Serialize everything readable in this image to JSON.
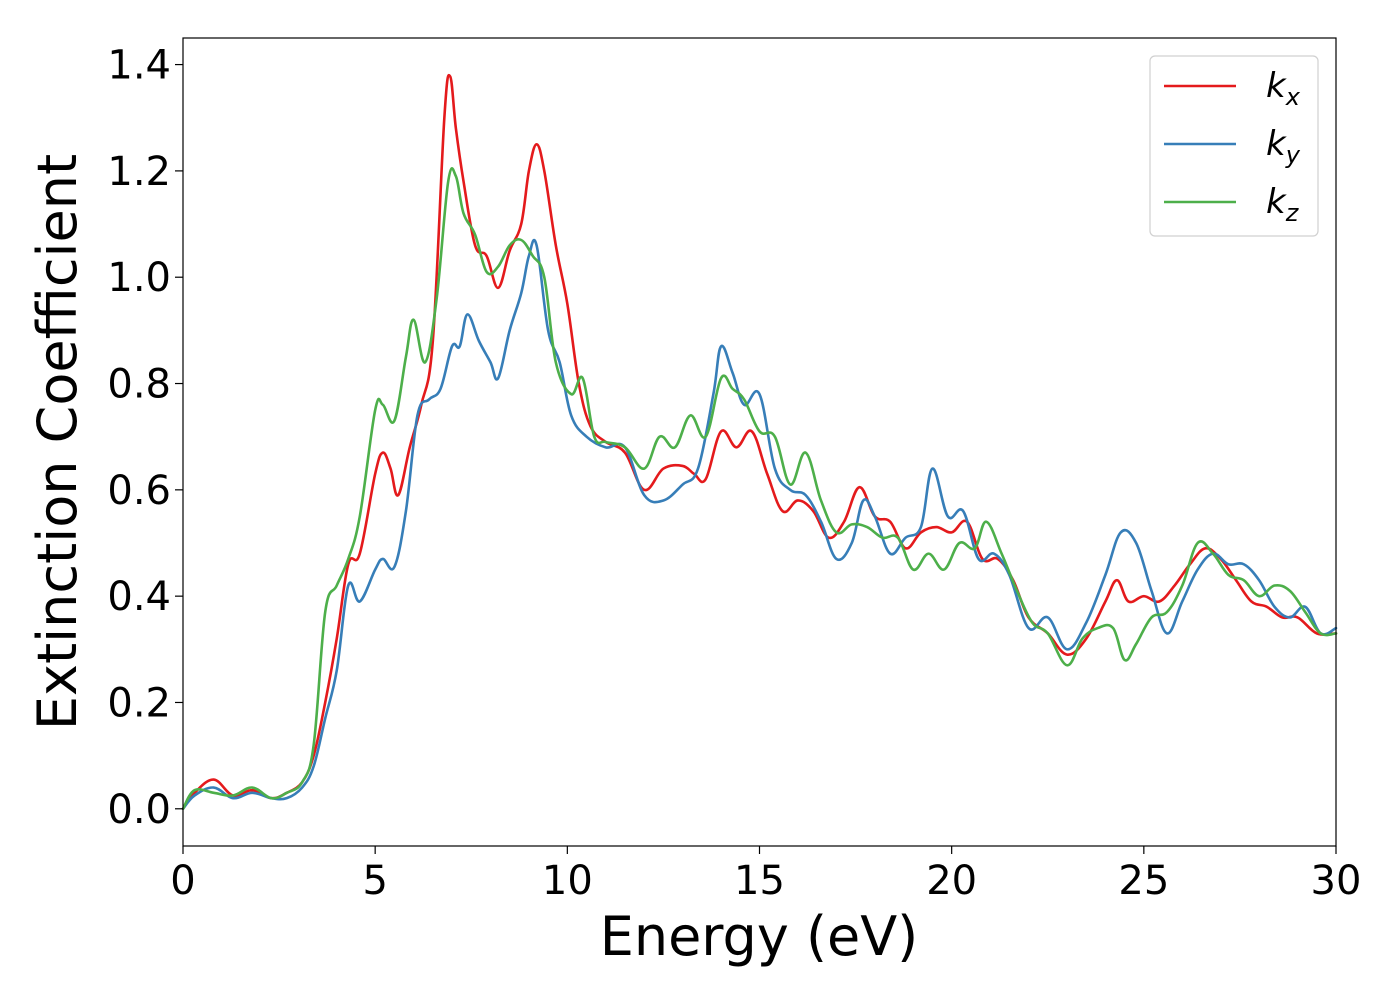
{
  "chart_data": {
    "type": "line",
    "title": "",
    "xlabel": "Energy (eV)",
    "ylabel": "Extinction Coefficient",
    "xlim": [
      0,
      30
    ],
    "ylim": [
      -0.07,
      1.45
    ],
    "xticks": [
      0,
      5,
      10,
      15,
      20,
      25,
      30
    ],
    "xtick_labels": [
      "0",
      "5",
      "10",
      "15",
      "20",
      "25",
      "30"
    ],
    "yticks": [
      0.0,
      0.2,
      0.4,
      0.6,
      0.8,
      1.0,
      1.2,
      1.4
    ],
    "ytick_labels": [
      "0.0",
      "0.2",
      "0.4",
      "0.6",
      "0.8",
      "1.0",
      "1.2",
      "1.4"
    ],
    "grid": false,
    "legend_position": "top-right",
    "series": [
      {
        "name": "k_x",
        "label_main": "k",
        "label_sub": "x",
        "color": "#e41a1c",
        "x": [
          0,
          0.3,
          0.8,
          1.3,
          1.8,
          2.3,
          2.7,
          3.1,
          3.4,
          3.7,
          4.0,
          4.3,
          4.6,
          5.0,
          5.2,
          5.4,
          5.6,
          5.9,
          6.2,
          6.5,
          6.8,
          6.95,
          7.1,
          7.3,
          7.6,
          7.9,
          8.2,
          8.5,
          8.8,
          9.0,
          9.2,
          9.4,
          9.7,
          10.0,
          10.3,
          10.6,
          11.0,
          11.5,
          12.0,
          12.5,
          13.0,
          13.3,
          13.6,
          14.0,
          14.4,
          14.8,
          15.2,
          15.6,
          16.0,
          16.4,
          16.8,
          17.2,
          17.6,
          18.0,
          18.4,
          18.8,
          19.2,
          19.6,
          20.0,
          20.4,
          20.8,
          21.2,
          21.6,
          22.0,
          22.5,
          23.0,
          23.5,
          24.0,
          24.3,
          24.6,
          25.0,
          25.4,
          25.8,
          26.2,
          26.6,
          27.0,
          27.4,
          27.8,
          28.2,
          28.6,
          29.0,
          29.5,
          30.0
        ],
        "y": [
          0.0,
          0.03,
          0.055,
          0.025,
          0.035,
          0.02,
          0.03,
          0.05,
          0.1,
          0.2,
          0.32,
          0.46,
          0.48,
          0.63,
          0.67,
          0.64,
          0.59,
          0.68,
          0.76,
          0.88,
          1.3,
          1.378,
          1.28,
          1.18,
          1.06,
          1.04,
          0.98,
          1.05,
          1.1,
          1.2,
          1.25,
          1.2,
          1.06,
          0.95,
          0.8,
          0.72,
          0.69,
          0.67,
          0.6,
          0.64,
          0.645,
          0.63,
          0.62,
          0.71,
          0.68,
          0.71,
          0.63,
          0.56,
          0.58,
          0.56,
          0.51,
          0.54,
          0.605,
          0.55,
          0.54,
          0.49,
          0.52,
          0.53,
          0.52,
          0.54,
          0.47,
          0.47,
          0.43,
          0.36,
          0.33,
          0.29,
          0.32,
          0.39,
          0.43,
          0.39,
          0.4,
          0.39,
          0.42,
          0.46,
          0.49,
          0.47,
          0.43,
          0.39,
          0.38,
          0.36,
          0.36,
          0.33,
          0.33
        ]
      },
      {
        "name": "k_y",
        "label_main": "k",
        "label_sub": "y",
        "color": "#377eb8",
        "x": [
          0,
          0.3,
          0.8,
          1.3,
          1.8,
          2.3,
          2.7,
          3.1,
          3.4,
          3.7,
          4.0,
          4.3,
          4.6,
          5.0,
          5.2,
          5.5,
          5.8,
          6.1,
          6.4,
          6.7,
          7.0,
          7.2,
          7.4,
          7.7,
          8.0,
          8.2,
          8.5,
          8.8,
          9.0,
          9.2,
          9.5,
          9.8,
          10.1,
          10.5,
          11.0,
          11.5,
          12.0,
          12.5,
          13.0,
          13.4,
          13.8,
          14.0,
          14.3,
          14.6,
          15.0,
          15.4,
          15.8,
          16.2,
          16.6,
          17.0,
          17.4,
          17.7,
          18.0,
          18.4,
          18.8,
          19.2,
          19.5,
          19.9,
          20.3,
          20.7,
          21.1,
          21.5,
          22.0,
          22.5,
          23.0,
          23.5,
          24.0,
          24.4,
          24.8,
          25.2,
          25.6,
          26.0,
          26.4,
          26.8,
          27.2,
          27.6,
          28.0,
          28.4,
          28.8,
          29.2,
          29.6,
          30.0
        ],
        "y": [
          0.0,
          0.025,
          0.04,
          0.02,
          0.03,
          0.02,
          0.02,
          0.04,
          0.08,
          0.17,
          0.26,
          0.42,
          0.39,
          0.45,
          0.47,
          0.455,
          0.56,
          0.74,
          0.77,
          0.79,
          0.87,
          0.87,
          0.93,
          0.88,
          0.84,
          0.81,
          0.9,
          0.97,
          1.04,
          1.06,
          0.9,
          0.84,
          0.74,
          0.7,
          0.68,
          0.68,
          0.59,
          0.58,
          0.61,
          0.64,
          0.78,
          0.87,
          0.82,
          0.76,
          0.78,
          0.64,
          0.6,
          0.59,
          0.54,
          0.47,
          0.5,
          0.58,
          0.55,
          0.48,
          0.51,
          0.53,
          0.64,
          0.55,
          0.56,
          0.47,
          0.48,
          0.44,
          0.34,
          0.36,
          0.3,
          0.35,
          0.44,
          0.52,
          0.5,
          0.41,
          0.33,
          0.39,
          0.45,
          0.48,
          0.46,
          0.46,
          0.43,
          0.38,
          0.36,
          0.38,
          0.33,
          0.34
        ]
      },
      {
        "name": "k_z",
        "label_main": "k",
        "label_sub": "z",
        "color": "#4daf4a",
        "x": [
          0,
          0.3,
          0.8,
          1.3,
          1.8,
          2.3,
          2.7,
          3.1,
          3.4,
          3.7,
          4.0,
          4.3,
          4.6,
          5.0,
          5.2,
          5.5,
          5.8,
          6.0,
          6.3,
          6.6,
          6.9,
          7.1,
          7.3,
          7.6,
          7.9,
          8.2,
          8.5,
          8.8,
          9.1,
          9.4,
          9.7,
          10.1,
          10.4,
          10.7,
          11.0,
          11.5,
          12.0,
          12.4,
          12.8,
          13.2,
          13.6,
          14.0,
          14.3,
          14.6,
          15.0,
          15.4,
          15.8,
          16.2,
          16.6,
          17.0,
          17.4,
          17.8,
          18.2,
          18.6,
          19.0,
          19.4,
          19.8,
          20.2,
          20.6,
          20.9,
          21.3,
          21.7,
          22.1,
          22.5,
          23.0,
          23.4,
          23.8,
          24.2,
          24.5,
          24.8,
          25.2,
          25.6,
          26.0,
          26.4,
          26.8,
          27.2,
          27.6,
          28.0,
          28.4,
          28.8,
          29.2,
          29.6,
          30.0
        ],
        "y": [
          0.0,
          0.035,
          0.03,
          0.025,
          0.04,
          0.02,
          0.03,
          0.05,
          0.12,
          0.37,
          0.42,
          0.47,
          0.55,
          0.75,
          0.76,
          0.73,
          0.85,
          0.92,
          0.84,
          0.96,
          1.18,
          1.19,
          1.12,
          1.08,
          1.01,
          1.02,
          1.06,
          1.07,
          1.04,
          1.0,
          0.84,
          0.78,
          0.81,
          0.7,
          0.69,
          0.68,
          0.64,
          0.7,
          0.68,
          0.74,
          0.7,
          0.81,
          0.79,
          0.77,
          0.71,
          0.7,
          0.61,
          0.67,
          0.58,
          0.52,
          0.535,
          0.53,
          0.51,
          0.51,
          0.45,
          0.48,
          0.45,
          0.5,
          0.49,
          0.54,
          0.48,
          0.41,
          0.35,
          0.33,
          0.27,
          0.32,
          0.34,
          0.34,
          0.28,
          0.31,
          0.36,
          0.37,
          0.42,
          0.5,
          0.48,
          0.44,
          0.43,
          0.4,
          0.42,
          0.41,
          0.37,
          0.33,
          0.33
        ]
      }
    ]
  }
}
